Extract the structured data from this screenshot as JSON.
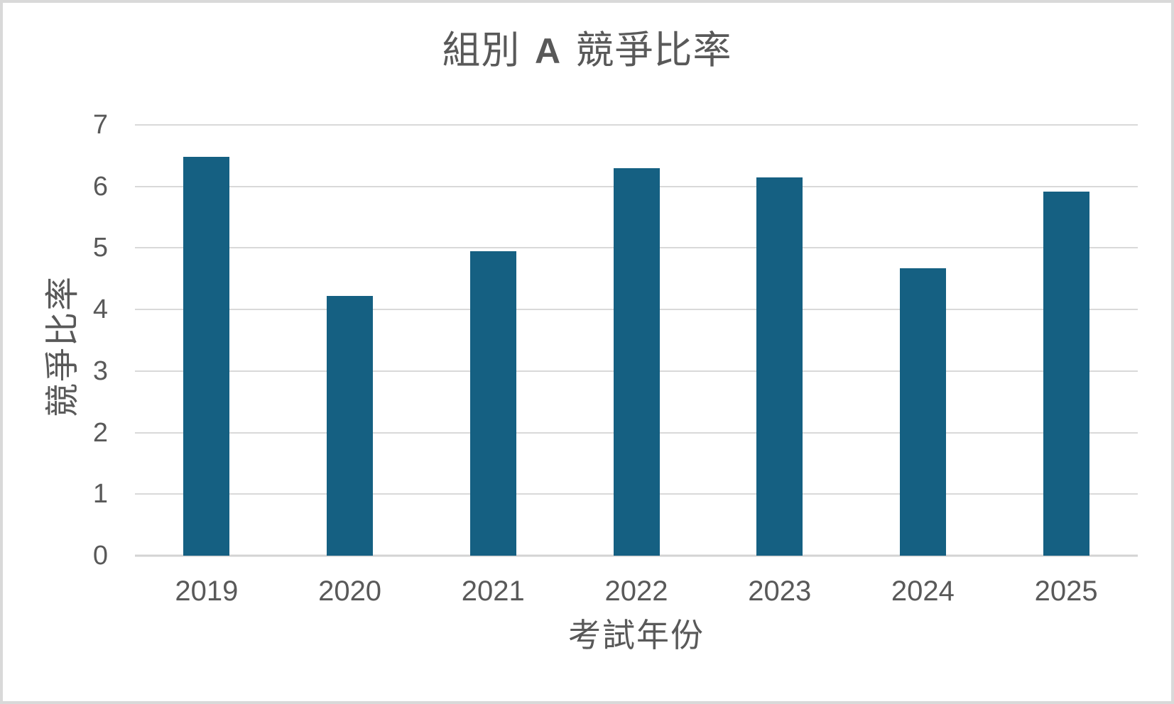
{
  "chart_data": {
    "type": "bar",
    "title": "組別 A 競爭比率",
    "title_parts": {
      "prefix": "組別",
      "emphasis": "A",
      "suffix": "競爭比率"
    },
    "xlabel": "考試年份",
    "ylabel": "競爭比率",
    "categories": [
      "2019",
      "2020",
      "2021",
      "2022",
      "2023",
      "2024",
      "2025"
    ],
    "values": [
      6.48,
      4.22,
      4.95,
      6.3,
      6.15,
      4.67,
      5.92
    ],
    "ylim": [
      0,
      7
    ],
    "yticks": [
      0,
      1,
      2,
      3,
      4,
      5,
      6,
      7
    ],
    "grid": "horizontal",
    "legend_position": "none",
    "colors": {
      "bar": "#156082",
      "gridline": "#D9D9D9",
      "axis_line": "#D3D3D3",
      "text": "#595959",
      "frame_border": "#D9D9D9",
      "background": "#FFFFFF"
    }
  }
}
